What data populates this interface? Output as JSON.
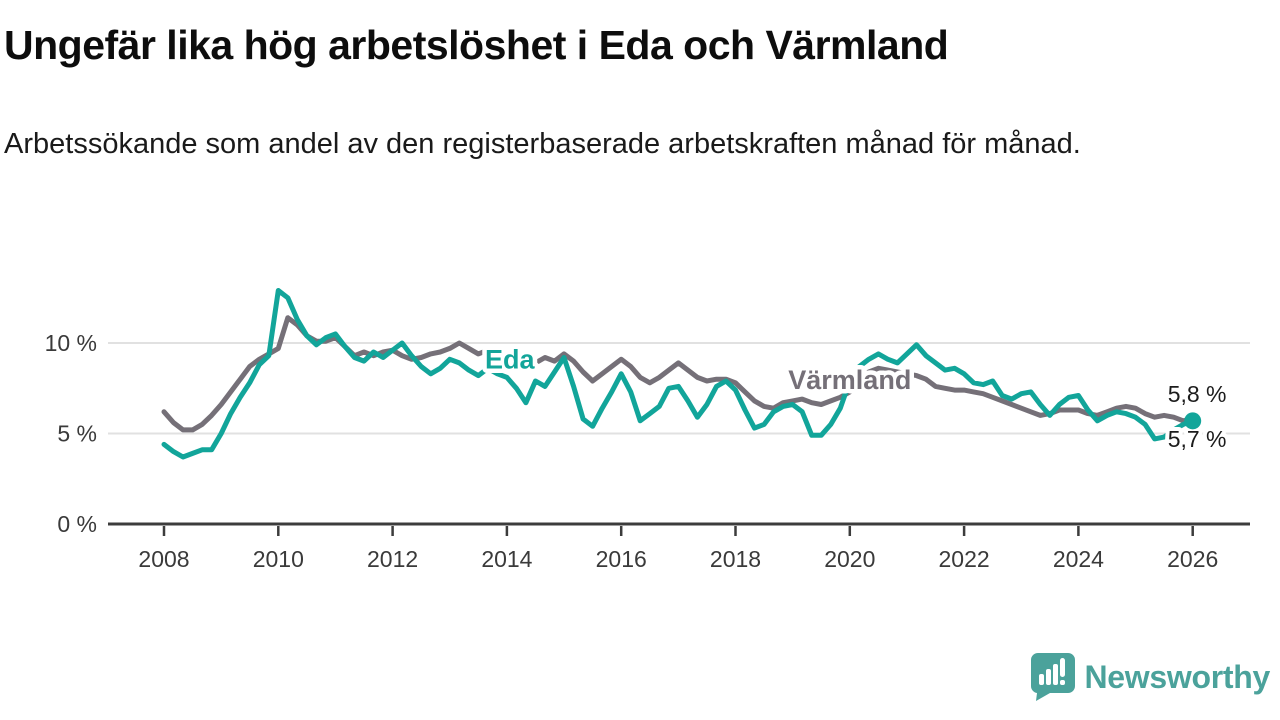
{
  "header": {
    "title": "Ungefär lika hög arbetslöshet i Eda och Värmland",
    "subtitle": "Arbetssökande som andel av den registerbaserade arbetskraften månad för månad."
  },
  "chart_data": {
    "type": "line",
    "title": "Ungefär lika hög arbetslöshet i Eda och Värmland",
    "subtitle": "Arbetssökande som andel av den registerbaserade arbetskraften månad för månad.",
    "x_start_year": 2008,
    "x_interval_months": 2,
    "xlim": [
      2007.6,
      2026.5
    ],
    "ylim": [
      0,
      14
    ],
    "grid": "horizontal",
    "legend_position": "inline-line-labels",
    "colors": {
      "eda": "#12A59A",
      "varmland": "#757078",
      "axis": "#3C3C3C",
      "gridline": "#E1E1E1",
      "tick_text": "#3A3A3A",
      "end_label_text": "#1C1C1C",
      "halo": "#FFFFFF"
    },
    "x_ticks": [
      {
        "label": "2008",
        "value": 2008
      },
      {
        "label": "2010",
        "value": 2010
      },
      {
        "label": "2012",
        "value": 2012
      },
      {
        "label": "2014",
        "value": 2014
      },
      {
        "label": "2016",
        "value": 2016
      },
      {
        "label": "2018",
        "value": 2018
      },
      {
        "label": "2020",
        "value": 2020
      },
      {
        "label": "2022",
        "value": 2022
      },
      {
        "label": "2024",
        "value": 2024
      },
      {
        "label": "2026",
        "value": 2026
      }
    ],
    "y_ticks": [
      {
        "label": "0 %",
        "value": 0
      },
      {
        "label": "5 %",
        "value": 5
      },
      {
        "label": "10 %",
        "value": 10
      }
    ],
    "series": [
      {
        "name": "Eda",
        "color": "#12A59A",
        "latest_value_label": "5,7 %",
        "values": [
          4.4,
          4.0,
          3.7,
          3.9,
          4.1,
          4.1,
          5.0,
          6.1,
          7.0,
          7.8,
          8.8,
          9.3,
          12.9,
          12.5,
          11.3,
          10.4,
          9.9,
          10.3,
          10.5,
          9.8,
          9.2,
          9.0,
          9.5,
          9.2,
          9.6,
          10.0,
          9.3,
          8.7,
          8.3,
          8.6,
          9.1,
          8.9,
          8.5,
          8.2,
          8.6,
          8.3,
          8.1,
          7.5,
          6.7,
          7.9,
          7.6,
          8.4,
          9.2,
          7.6,
          5.8,
          5.4,
          6.4,
          7.3,
          8.3,
          7.3,
          5.7,
          6.1,
          6.5,
          7.5,
          7.6,
          6.8,
          5.9,
          6.6,
          7.6,
          7.9,
          7.4,
          6.3,
          5.3,
          5.5,
          6.2,
          6.5,
          6.6,
          6.2,
          4.9,
          4.9,
          5.5,
          6.4,
          7.9,
          8.7,
          9.1,
          9.4,
          9.1,
          8.9,
          9.4,
          9.9,
          9.3,
          8.9,
          8.5,
          8.6,
          8.3,
          7.8,
          7.7,
          7.9,
          7.1,
          6.9,
          7.2,
          7.3,
          6.6,
          6.0,
          6.6,
          7.0,
          7.1,
          6.3,
          5.7,
          6.0,
          6.2,
          6.1,
          5.9,
          5.5,
          4.7,
          4.8,
          5.2,
          5.5,
          5.7
        ]
      },
      {
        "name": "Värmland",
        "color": "#757078",
        "latest_value_label": "5,8 %",
        "values": [
          6.2,
          5.6,
          5.2,
          5.2,
          5.5,
          6.0,
          6.6,
          7.3,
          8.0,
          8.7,
          9.1,
          9.4,
          9.7,
          11.4,
          11.0,
          10.4,
          10.1,
          10.1,
          10.3,
          9.8,
          9.3,
          9.5,
          9.3,
          9.5,
          9.6,
          9.3,
          9.1,
          9.2,
          9.4,
          9.5,
          9.7,
          10.0,
          9.7,
          9.4,
          9.6,
          9.3,
          9.2,
          8.9,
          8.7,
          8.9,
          9.2,
          9.0,
          9.4,
          9.0,
          8.4,
          7.9,
          8.3,
          8.7,
          9.1,
          8.7,
          8.1,
          7.8,
          8.1,
          8.5,
          8.9,
          8.5,
          8.1,
          7.9,
          8.0,
          8.0,
          7.8,
          7.3,
          6.8,
          6.5,
          6.4,
          6.7,
          6.8,
          6.9,
          6.7,
          6.6,
          6.8,
          7.0,
          7.3,
          7.7,
          8.4,
          8.6,
          8.5,
          8.4,
          8.3,
          8.2,
          8.0,
          7.6,
          7.5,
          7.4,
          7.4,
          7.3,
          7.2,
          7.0,
          6.8,
          6.6,
          6.4,
          6.2,
          6.0,
          6.1,
          6.3,
          6.3,
          6.3,
          6.1,
          6.0,
          6.2,
          6.4,
          6.5,
          6.4,
          6.1,
          5.9,
          6.0,
          5.9,
          5.7,
          5.8
        ]
      }
    ],
    "line_labels": [
      {
        "text": "Eda",
        "x": 2014.05,
        "y": 9.1,
        "color": "#12A59A"
      },
      {
        "text": "Värmland",
        "x": 2020.0,
        "y": 7.95,
        "color": "#757078"
      }
    ],
    "end_labels": [
      {
        "text": "5,8 %",
        "series": "Värmland",
        "position": "above"
      },
      {
        "text": "5,7 %",
        "series": "Eda",
        "position": "below"
      }
    ],
    "end_dot": {
      "series": "Eda"
    }
  },
  "footer": {
    "logo_text": "Newsworthy",
    "logo_color": "#4BA29B"
  }
}
